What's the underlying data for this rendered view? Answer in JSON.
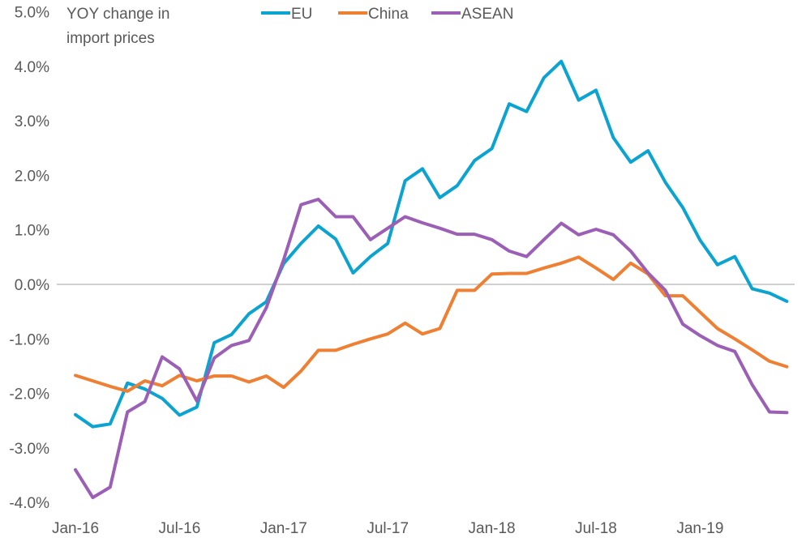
{
  "chart_data": {
    "type": "line",
    "title": "YOY change in import prices",
    "title_lines": [
      "YOY change in import prices",
      "import prices"
    ],
    "xlabel": "",
    "ylabel": "",
    "ylim": [
      -4.0,
      5.0
    ],
    "y_ticks": [
      5.0,
      4.0,
      3.0,
      2.0,
      1.0,
      0.0,
      -1.0,
      -2.0,
      -3.0,
      -4.0
    ],
    "y_tick_labels": [
      "5.0%",
      "4.0%",
      "3.0%",
      "2.0%",
      "1.0%",
      "0.0%",
      "-1.0%",
      "-2.0%",
      "-3.0%",
      "-4.0%"
    ],
    "x_tick_labels": [
      "Jan-16",
      "Jul-16",
      "Jan-17",
      "Jul-17",
      "Jan-18",
      "Jul-18",
      "Jan-19"
    ],
    "x_tick_month_index": [
      0,
      6,
      12,
      18,
      24,
      30,
      36
    ],
    "x_start": "Jan-16",
    "x_end": "Jun-19",
    "grid": false,
    "zero_line": true,
    "legend_placement": "top",
    "series": [
      {
        "name": "EU",
        "color": "#0ba3cf",
        "values": [
          -2.39,
          -2.61,
          -2.56,
          -1.81,
          -1.92,
          -2.09,
          -2.4,
          -2.25,
          -1.07,
          -0.92,
          -0.54,
          -0.32,
          0.38,
          0.75,
          1.07,
          0.83,
          0.21,
          0.51,
          0.75,
          1.9,
          2.12,
          1.59,
          1.81,
          2.27,
          2.49,
          3.31,
          3.17,
          3.79,
          4.09,
          3.38,
          3.56,
          2.69,
          2.24,
          2.45,
          1.87,
          1.41,
          0.81,
          0.36,
          0.51,
          -0.08,
          -0.16,
          -0.31
        ]
      },
      {
        "name": "China",
        "color": "#ee7f33",
        "values": [
          -1.67,
          -1.77,
          -1.87,
          -1.96,
          -1.77,
          -1.86,
          -1.67,
          -1.77,
          -1.68,
          -1.68,
          -1.79,
          -1.68,
          -1.89,
          -1.59,
          -1.21,
          -1.21,
          -1.1,
          -1.0,
          -0.91,
          -0.71,
          -0.91,
          -0.81,
          -0.11,
          -0.11,
          0.19,
          0.2,
          0.2,
          0.3,
          0.39,
          0.5,
          0.3,
          0.09,
          0.39,
          0.19,
          -0.21,
          -0.21,
          -0.51,
          -0.81,
          -1.0,
          -1.2,
          -1.41,
          -1.51
        ]
      },
      {
        "name": "ASEAN",
        "color": "#9b5fb5",
        "values": [
          -3.4,
          -3.91,
          -3.72,
          -2.34,
          -2.15,
          -1.33,
          -1.55,
          -2.14,
          -1.35,
          -1.12,
          -1.03,
          -0.43,
          0.45,
          1.46,
          1.56,
          1.24,
          1.24,
          0.82,
          1.03,
          1.24,
          1.13,
          1.03,
          0.92,
          0.92,
          0.82,
          0.61,
          0.51,
          0.82,
          1.12,
          0.91,
          1.01,
          0.91,
          0.61,
          0.21,
          -0.11,
          -0.73,
          -0.94,
          -1.12,
          -1.23,
          -1.84,
          -2.34,
          -2.35
        ]
      }
    ]
  }
}
